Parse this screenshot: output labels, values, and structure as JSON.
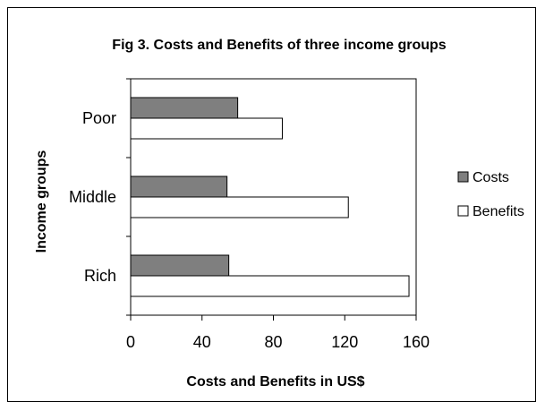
{
  "chart_data": {
    "type": "bar",
    "orientation": "horizontal",
    "title": "Fig 3. Costs and Benefits of three income groups",
    "xlabel": "Costs and Benefits in US$",
    "ylabel": "Income groups",
    "categories": [
      "Poor",
      "Middle",
      "Rich"
    ],
    "series": [
      {
        "name": "Costs",
        "values": [
          60,
          54,
          55
        ],
        "color": "#7f7f7f"
      },
      {
        "name": "Benefits",
        "values": [
          85,
          122,
          156
        ],
        "color": "#ffffff"
      }
    ],
    "xlim": [
      0,
      160
    ],
    "xticks": [
      "0",
      "40",
      "80",
      "120",
      "160"
    ],
    "grid": false,
    "legend_position": "right"
  }
}
